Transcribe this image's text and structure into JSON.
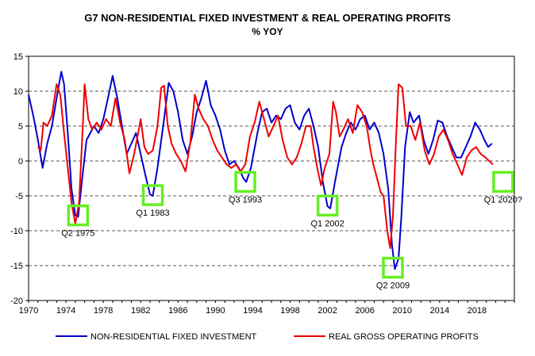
{
  "chart_data": {
    "type": "line",
    "title": "G7 NON-RESIDENTIAL FIXED INVESTMENT & REAL OPERATING PROFITS",
    "subtitle": "% YOY",
    "xlim": [
      1970,
      2022
    ],
    "ylim": [
      -20,
      15
    ],
    "x_ticks": [
      "1970",
      "1974",
      "1978",
      "1982",
      "1986",
      "1990",
      "1994",
      "1998",
      "2002",
      "2006",
      "2010",
      "2014",
      "2018"
    ],
    "y_ticks": [
      "15",
      "10",
      "5",
      "0",
      "-5",
      "-10",
      "-15",
      "-20"
    ],
    "y_tick_values": [
      15,
      10,
      5,
      0,
      -5,
      -10,
      -15,
      -20
    ],
    "grid": "horizontal dashed",
    "legend_position": "bottom",
    "series": [
      {
        "name": "NON-RESIDENTIAL FIXED INVESTMENT",
        "color": "#0000cc",
        "points": [
          [
            1970.0,
            9.5
          ],
          [
            1970.5,
            6.5
          ],
          [
            1971.0,
            3.0
          ],
          [
            1971.5,
            -1.0
          ],
          [
            1972.0,
            2.5
          ],
          [
            1972.5,
            5.0
          ],
          [
            1973.0,
            9.0
          ],
          [
            1973.5,
            12.8
          ],
          [
            1973.8,
            11.0
          ],
          [
            1974.2,
            4.0
          ],
          [
            1974.6,
            -4.0
          ],
          [
            1975.0,
            -7.8
          ],
          [
            1975.3,
            -8.0
          ],
          [
            1975.7,
            -3.0
          ],
          [
            1976.2,
            3.0
          ],
          [
            1977.0,
            5.0
          ],
          [
            1977.5,
            4.0
          ],
          [
            1978.0,
            6.0
          ],
          [
            1978.5,
            9.0
          ],
          [
            1979.0,
            12.2
          ],
          [
            1979.5,
            9.0
          ],
          [
            1980.0,
            5.0
          ],
          [
            1980.5,
            1.0
          ],
          [
            1981.0,
            2.5
          ],
          [
            1981.5,
            4.0
          ],
          [
            1982.0,
            1.0
          ],
          [
            1982.5,
            -2.0
          ],
          [
            1983.0,
            -4.8
          ],
          [
            1983.3,
            -5.0
          ],
          [
            1983.8,
            -1.0
          ],
          [
            1984.5,
            6.0
          ],
          [
            1985.0,
            11.2
          ],
          [
            1985.5,
            10.0
          ],
          [
            1986.0,
            7.0
          ],
          [
            1986.5,
            3.0
          ],
          [
            1987.0,
            1.0
          ],
          [
            1987.5,
            3.5
          ],
          [
            1988.0,
            7.0
          ],
          [
            1988.5,
            9.0
          ],
          [
            1989.0,
            11.5
          ],
          [
            1989.5,
            8.0
          ],
          [
            1990.0,
            6.5
          ],
          [
            1990.5,
            4.5
          ],
          [
            1991.0,
            1.5
          ],
          [
            1991.5,
            -0.5
          ],
          [
            1992.0,
            0.0
          ],
          [
            1992.5,
            -1.0
          ],
          [
            1993.0,
            -2.5
          ],
          [
            1993.3,
            -3.0
          ],
          [
            1993.8,
            -1.0
          ],
          [
            1994.5,
            4.0
          ],
          [
            1995.0,
            7.0
          ],
          [
            1995.5,
            7.5
          ],
          [
            1996.0,
            5.5
          ],
          [
            1996.5,
            6.5
          ],
          [
            1997.0,
            6.0
          ],
          [
            1997.5,
            7.5
          ],
          [
            1998.0,
            8.0
          ],
          [
            1998.5,
            5.5
          ],
          [
            1999.0,
            4.5
          ],
          [
            1999.5,
            6.5
          ],
          [
            2000.0,
            7.5
          ],
          [
            2000.5,
            5.0
          ],
          [
            2001.0,
            2.0
          ],
          [
            2001.5,
            -3.0
          ],
          [
            2002.0,
            -6.5
          ],
          [
            2002.3,
            -6.8
          ],
          [
            2002.8,
            -3.0
          ],
          [
            2003.5,
            2.0
          ],
          [
            2004.0,
            4.0
          ],
          [
            2004.5,
            5.5
          ],
          [
            2005.0,
            4.5
          ],
          [
            2005.5,
            6.0
          ],
          [
            2006.0,
            6.5
          ],
          [
            2006.5,
            4.5
          ],
          [
            2007.0,
            5.5
          ],
          [
            2007.5,
            4.0
          ],
          [
            2008.0,
            1.0
          ],
          [
            2008.5,
            -4.0
          ],
          [
            2008.9,
            -12.0
          ],
          [
            2009.2,
            -15.5
          ],
          [
            2009.6,
            -14.0
          ],
          [
            2009.9,
            -8.0
          ],
          [
            2010.3,
            2.0
          ],
          [
            2010.8,
            7.0
          ],
          [
            2011.2,
            5.5
          ],
          [
            2011.8,
            6.5
          ],
          [
            2012.3,
            3.0
          ],
          [
            2012.8,
            1.0
          ],
          [
            2013.3,
            3.0
          ],
          [
            2013.8,
            5.8
          ],
          [
            2014.3,
            5.5
          ],
          [
            2014.8,
            3.5
          ],
          [
            2015.3,
            2.0
          ],
          [
            2015.8,
            0.5
          ],
          [
            2016.3,
            0.5
          ],
          [
            2016.8,
            2.0
          ],
          [
            2017.3,
            3.5
          ],
          [
            2017.8,
            5.5
          ],
          [
            2018.3,
            4.5
          ],
          [
            2018.8,
            3.0
          ],
          [
            2019.2,
            2.0
          ],
          [
            2019.6,
            2.5
          ]
        ]
      },
      {
        "name": "REAL GROSS OPERATING PROFITS",
        "color": "#ee0000",
        "points": [
          [
            1971.0,
            2.0
          ],
          [
            1971.3,
            1.5
          ],
          [
            1971.6,
            5.5
          ],
          [
            1972.0,
            5.0
          ],
          [
            1972.5,
            6.5
          ],
          [
            1973.0,
            11.0
          ],
          [
            1973.4,
            9.5
          ],
          [
            1973.8,
            4.0
          ],
          [
            1974.2,
            -1.0
          ],
          [
            1974.6,
            -6.0
          ],
          [
            1975.0,
            -9.0
          ],
          [
            1975.4,
            -6.0
          ],
          [
            1975.8,
            5.0
          ],
          [
            1976.0,
            11.0
          ],
          [
            1976.4,
            6.0
          ],
          [
            1976.8,
            4.5
          ],
          [
            1977.3,
            5.5
          ],
          [
            1977.8,
            4.5
          ],
          [
            1978.3,
            6.0
          ],
          [
            1978.8,
            5.0
          ],
          [
            1979.3,
            9.0
          ],
          [
            1979.8,
            5.5
          ],
          [
            1980.3,
            3.0
          ],
          [
            1980.8,
            -1.8
          ],
          [
            1981.3,
            1.0
          ],
          [
            1981.8,
            4.5
          ],
          [
            1982.0,
            6.0
          ],
          [
            1982.4,
            2.0
          ],
          [
            1982.8,
            1.0
          ],
          [
            1983.3,
            1.5
          ],
          [
            1983.8,
            5.0
          ],
          [
            1984.2,
            10.5
          ],
          [
            1984.5,
            10.8
          ],
          [
            1984.9,
            5.0
          ],
          [
            1985.3,
            2.5
          ],
          [
            1985.8,
            1.0
          ],
          [
            1986.3,
            0.0
          ],
          [
            1986.8,
            -1.5
          ],
          [
            1987.3,
            2.5
          ],
          [
            1987.8,
            9.5
          ],
          [
            1988.2,
            7.5
          ],
          [
            1988.7,
            6.0
          ],
          [
            1989.2,
            5.0
          ],
          [
            1989.7,
            3.0
          ],
          [
            1990.2,
            1.5
          ],
          [
            1990.7,
            0.5
          ],
          [
            1991.2,
            -0.5
          ],
          [
            1991.7,
            -1.0
          ],
          [
            1992.2,
            -0.5
          ],
          [
            1992.7,
            -1.5
          ],
          [
            1993.2,
            -0.5
          ],
          [
            1993.7,
            3.5
          ],
          [
            1994.2,
            5.5
          ],
          [
            1994.7,
            8.5
          ],
          [
            1995.2,
            6.0
          ],
          [
            1995.7,
            3.5
          ],
          [
            1996.2,
            5.0
          ],
          [
            1996.7,
            6.5
          ],
          [
            1997.2,
            3.0
          ],
          [
            1997.7,
            0.5
          ],
          [
            1998.2,
            -0.5
          ],
          [
            1998.7,
            0.5
          ],
          [
            1999.2,
            2.5
          ],
          [
            1999.7,
            5.0
          ],
          [
            2000.2,
            5.0
          ],
          [
            2000.5,
            2.0
          ],
          [
            2000.9,
            -1.0
          ],
          [
            2001.3,
            -3.5
          ],
          [
            2001.7,
            -1.0
          ],
          [
            2002.2,
            1.0
          ],
          [
            2002.6,
            8.5
          ],
          [
            2002.9,
            7.0
          ],
          [
            2003.3,
            3.5
          ],
          [
            2003.7,
            4.5
          ],
          [
            2004.2,
            6.0
          ],
          [
            2004.7,
            4.0
          ],
          [
            2005.2,
            8.0
          ],
          [
            2005.7,
            7.0
          ],
          [
            2006.2,
            5.0
          ],
          [
            2006.6,
            1.5
          ],
          [
            2006.9,
            -0.5
          ],
          [
            2007.3,
            -2.5
          ],
          [
            2007.7,
            -4.5
          ],
          [
            2008.0,
            -5.0
          ],
          [
            2008.4,
            -10.0
          ],
          [
            2008.7,
            -12.5
          ],
          [
            2009.0,
            -8.0
          ],
          [
            2009.3,
            2.0
          ],
          [
            2009.6,
            11.0
          ],
          [
            2010.0,
            10.5
          ],
          [
            2010.4,
            5.0
          ],
          [
            2010.9,
            5.0
          ],
          [
            2011.4,
            3.0
          ],
          [
            2011.9,
            5.5
          ],
          [
            2012.4,
            1.5
          ],
          [
            2012.9,
            -0.5
          ],
          [
            2013.4,
            1.0
          ],
          [
            2013.9,
            3.5
          ],
          [
            2014.4,
            4.5
          ],
          [
            2014.9,
            3.0
          ],
          [
            2015.4,
            1.0
          ],
          [
            2015.9,
            -0.5
          ],
          [
            2016.4,
            -2.0
          ],
          [
            2016.9,
            0.5
          ],
          [
            2017.4,
            1.5
          ],
          [
            2017.9,
            2.0
          ],
          [
            2018.4,
            1.0
          ],
          [
            2018.9,
            0.5
          ],
          [
            2019.3,
            0.0
          ],
          [
            2019.7,
            -0.5
          ]
        ]
      }
    ],
    "annotations": [
      {
        "label": "Q2 1975",
        "x": 1975.3,
        "y": -7.8
      },
      {
        "label": "Q1 1983",
        "x": 1983.3,
        "y": -4.9
      },
      {
        "label": "Q3 1993",
        "x": 1993.2,
        "y": -3.0
      },
      {
        "label": "Q1 2002",
        "x": 2002.0,
        "y": -6.4
      },
      {
        "label": "Q2 2009",
        "x": 2009.0,
        "y": -15.3
      },
      {
        "label": "Q1 2020?",
        "x": 2020.8,
        "y": -3.0
      }
    ],
    "highlight_color": "#66ee22",
    "axis_color": "#000000",
    "grid_color": "#555555"
  }
}
